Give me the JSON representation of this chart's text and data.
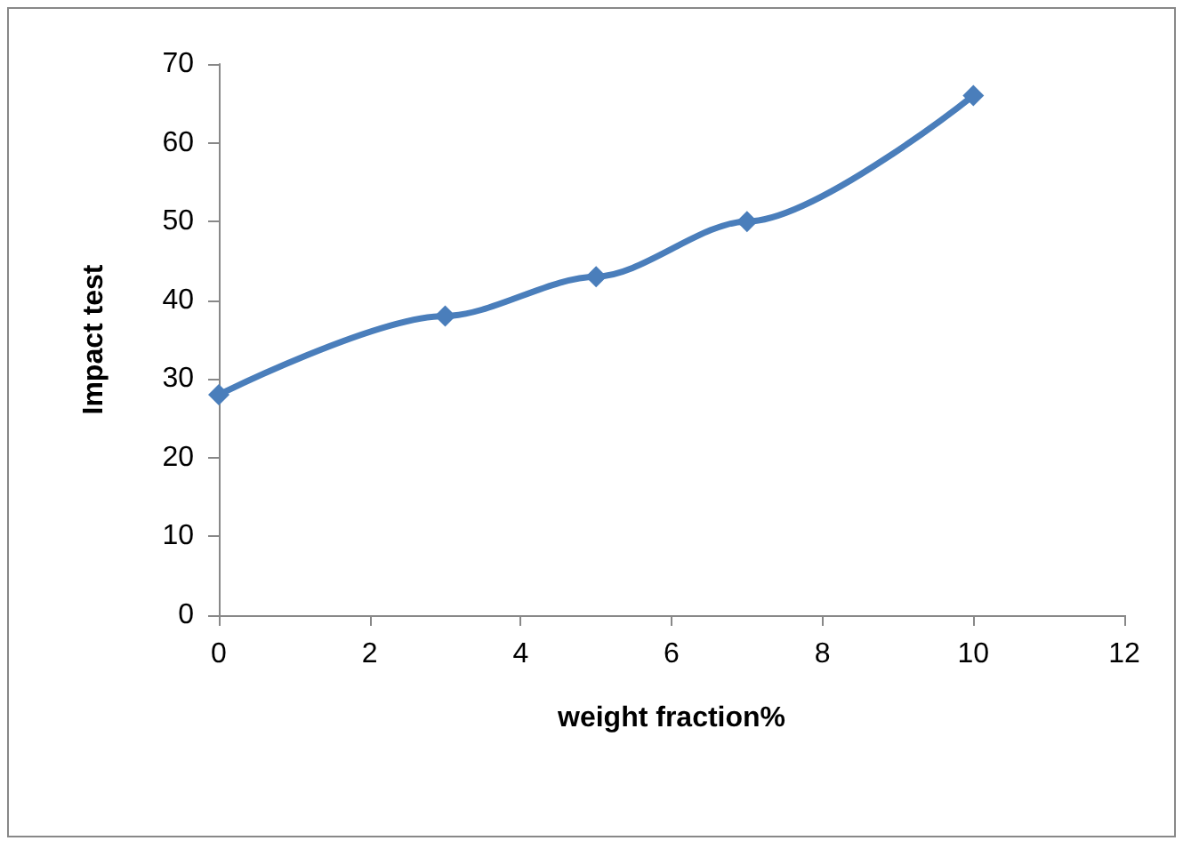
{
  "chart_data": {
    "type": "line",
    "xlabel": "weight fraction%",
    "ylabel": "Impact test",
    "x": [
      0,
      3,
      5,
      7,
      10
    ],
    "series": [
      {
        "color": "#4a7ebb",
        "values": [
          28,
          38,
          43,
          50,
          66
        ]
      }
    ],
    "xlim": [
      0,
      12
    ],
    "xticks": [
      0,
      2,
      4,
      6,
      8,
      10,
      12
    ],
    "ylim": [
      0,
      70
    ],
    "yticks": [
      0,
      10,
      20,
      30,
      40,
      50,
      60,
      70
    ],
    "grid": false,
    "marker": "diamond",
    "line_style": "solid"
  }
}
